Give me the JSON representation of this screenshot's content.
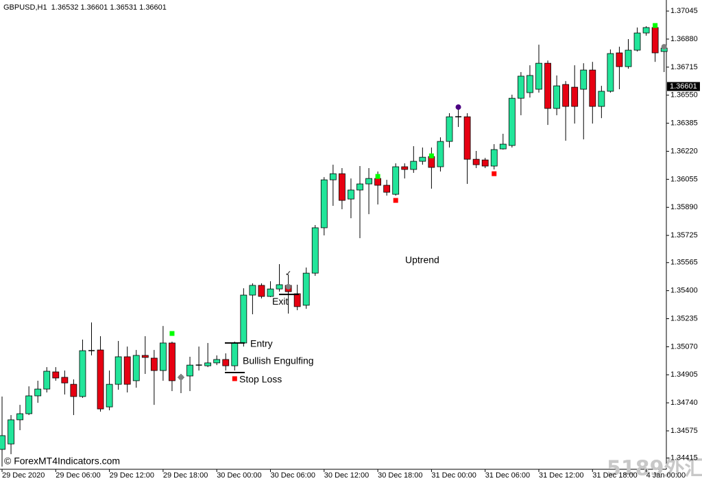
{
  "chart_data": {
    "type": "candlestick",
    "title": "GBPUSD,H1  1.36532 1.36601 1.36531 1.36601",
    "categories": [
      "29 Dec 2020",
      null,
      null,
      null,
      null,
      null,
      "29 Dec 06:00",
      null,
      null,
      null,
      null,
      null,
      "29 Dec 12:00",
      null,
      null,
      null,
      null,
      null,
      "29 Dec 18:00",
      null,
      null,
      null,
      null,
      null,
      "30 Dec 00:00",
      null,
      null,
      null,
      null,
      null,
      "30 Dec 06:00",
      null,
      null,
      null,
      null,
      null,
      "30 Dec 12:00",
      null,
      null,
      null,
      null,
      null,
      "30 Dec 18:00",
      null,
      null,
      null,
      null,
      null,
      "31 Dec 00:00",
      null,
      null,
      null,
      null,
      null,
      "31 Dec 06:00",
      null,
      null,
      null,
      null,
      null,
      "31 Dec 12:00",
      null,
      null,
      null,
      null,
      null,
      "31 Dec 18:00",
      null,
      null,
      null,
      null,
      null,
      "4 Jan 00:00",
      null,
      null
    ],
    "open": [
      1.34466,
      1.34498,
      1.3464,
      1.34676,
      1.34781,
      1.34821,
      1.34922,
      1.3489,
      1.34849,
      1.34777,
      1.35047,
      1.35051,
      1.34716,
      1.34849,
      1.35011,
      1.3487,
      1.35019,
      1.35003,
      1.3493,
      1.35092,
      1.3489,
      1.34898,
      1.34962,
      1.34958,
      1.34975,
      1.34995,
      1.34958,
      1.35092,
      1.35374,
      1.35431,
      1.35366,
      1.3541,
      1.35431,
      1.35382,
      1.35314,
      1.35503,
      1.3577,
      1.36052,
      1.36088,
      1.35939,
      1.35992,
      1.36028,
      1.3606,
      1.3602,
      1.35967,
      1.36129,
      1.36113,
      1.36161,
      1.36189,
      1.36129,
      1.36278,
      1.36423,
      1.36423,
      1.36173,
      1.36169,
      1.36133,
      1.36234,
      1.36254,
      1.36532,
      1.36565,
      1.36585,
      1.36738,
      1.36472,
      1.36613,
      1.36597,
      1.36585,
      1.36698,
      1.36484,
      1.36573,
      1.36799,
      1.36718,
      1.36815,
      1.36916,
      1.36948,
      1.36807
    ],
    "high": [
      1.34777,
      1.34668,
      1.34728,
      1.34837,
      1.3487,
      1.3495,
      1.3495,
      1.3493,
      1.34878,
      1.35112,
      1.35213,
      1.35132,
      1.3493,
      1.35104,
      1.35071,
      1.35051,
      1.35132,
      1.35051,
      1.35192,
      1.351,
      1.3491,
      1.35011,
      1.35071,
      1.35092,
      1.35019,
      1.35031,
      1.351,
      1.35414,
      1.35443,
      1.35443,
      1.35455,
      1.35556,
      1.35495,
      1.35435,
      1.35536,
      1.35786,
      1.36068,
      1.36141,
      1.36121,
      1.3606,
      1.36133,
      1.36121,
      1.36101,
      1.36052,
      1.36149,
      1.36149,
      1.3625,
      1.36242,
      1.36242,
      1.36302,
      1.36444,
      1.36472,
      1.36444,
      1.36222,
      1.36181,
      1.36262,
      1.36323,
      1.36553,
      1.36686,
      1.36726,
      1.36847,
      1.36754,
      1.36666,
      1.36633,
      1.36726,
      1.36738,
      1.36746,
      1.36605,
      1.36819,
      1.36835,
      1.3688,
      1.36948,
      1.36956,
      1.36968,
      1.36847
    ],
    "low": [
      1.34365,
      1.34438,
      1.34579,
      1.34668,
      1.3474,
      1.34801,
      1.3487,
      1.34789,
      1.34668,
      1.34769,
      1.35019,
      1.34688,
      1.34696,
      1.34817,
      1.34801,
      1.34829,
      1.3491,
      1.34728,
      1.3487,
      1.34809,
      1.34797,
      1.34809,
      1.3493,
      1.3495,
      1.34962,
      1.3493,
      1.3493,
      1.35071,
      1.35261,
      1.35354,
      1.35362,
      1.35394,
      1.35265,
      1.35285,
      1.35293,
      1.35487,
      1.35725,
      1.35899,
      1.35879,
      1.35826,
      1.35709,
      1.3585,
      1.35907,
      1.35959,
      1.35959,
      1.3606,
      1.36093,
      1.36141,
      1.36,
      1.36101,
      1.36242,
      1.36363,
      1.36028,
      1.36121,
      1.36121,
      1.36113,
      1.3623,
      1.36242,
      1.36432,
      1.36536,
      1.36565,
      1.36375,
      1.36432,
      1.36282,
      1.36383,
      1.3629,
      1.36383,
      1.36415,
      1.36565,
      1.36585,
      1.36706,
      1.36807,
      1.369,
      1.36746,
      1.36686
    ],
    "close": [
      1.34547,
      1.3464,
      1.34676,
      1.34781,
      1.34821,
      1.34926,
      1.34886,
      1.34857,
      1.34777,
      1.35047,
      1.35047,
      1.34704,
      1.34849,
      1.35011,
      1.34849,
      1.35019,
      1.35007,
      1.3493,
      1.35092,
      1.3487,
      1.3489,
      1.34962,
      1.34962,
      1.34975,
      1.34995,
      1.34958,
      1.35092,
      1.35374,
      1.35431,
      1.35366,
      1.3541,
      1.35435,
      1.35394,
      1.35306,
      1.35503,
      1.3577,
      1.36052,
      1.36088,
      1.35931,
      1.35992,
      1.36028,
      1.3606,
      1.3602,
      1.35979,
      1.36129,
      1.36113,
      1.36161,
      1.36185,
      1.36125,
      1.36278,
      1.36423,
      1.36423,
      1.36173,
      1.36141,
      1.36133,
      1.3623,
      1.36262,
      1.36532,
      1.36662,
      1.36666,
      1.36738,
      1.36472,
      1.36605,
      1.36484,
      1.36484,
      1.36698,
      1.36484,
      1.36573,
      1.36795,
      1.36718,
      1.36815,
      1.36916,
      1.36948,
      1.36799,
      1.36827
    ],
    "up_color": "#22e59a",
    "down_color": "#e60012",
    "ylim": [
      1.34349,
      1.3711
    ],
    "yticks": [
      1.37045,
      {
        "value": 1.3688,
        "label": "1.36880"
      },
      1.36715,
      {
        "value": 1.3655,
        "label": "1.36550"
      },
      1.36385,
      {
        "value": 1.3622,
        "label": "1.36220"
      },
      1.36055,
      {
        "value": 1.3589,
        "label": "1.35890"
      },
      1.35725,
      1.35565,
      {
        "value": 1.354,
        "label": "1.35400"
      },
      1.35235,
      {
        "value": 1.3507,
        "label": "1.35070"
      },
      1.34905,
      {
        "value": 1.3474,
        "label": "1.34740"
      },
      1.34575,
      1.34415
    ],
    "current_price": 1.36601,
    "grid": false,
    "markers": [
      {
        "shape": "square",
        "color": "#00ff00",
        "points": [
          [
            19,
            1.35148
          ],
          [
            42,
            1.36072
          ],
          [
            48,
            1.36193
          ],
          [
            73,
            1.3696
          ]
        ]
      },
      {
        "shape": "square",
        "color": "#ff0000",
        "points": [
          [
            26,
            1.34882
          ],
          [
            44,
            1.35931
          ],
          [
            55,
            1.36088
          ]
        ]
      },
      {
        "shape": "circle",
        "color": "#4b0082",
        "points": [
          [
            51,
            1.3648
          ]
        ]
      },
      {
        "shape": "circle",
        "color": "#808080",
        "points": [
          [
            20,
            1.3489
          ],
          [
            32,
            1.35423
          ],
          [
            74,
            1.36835
          ]
        ]
      }
    ],
    "levels": [
      {
        "label": "Entry",
        "value": 1.35092
      },
      {
        "label": "Exit",
        "value": 1.35378
      },
      {
        "label": "Stop Loss",
        "value": 1.34918
      }
    ],
    "annotations": {
      "pattern": "Bullish Engulfing",
      "trend": "Uptrend",
      "check": "✓"
    },
    "watermark": "© ForexMT4Indicators.com",
    "corner_mark": "5189外汇网"
  }
}
